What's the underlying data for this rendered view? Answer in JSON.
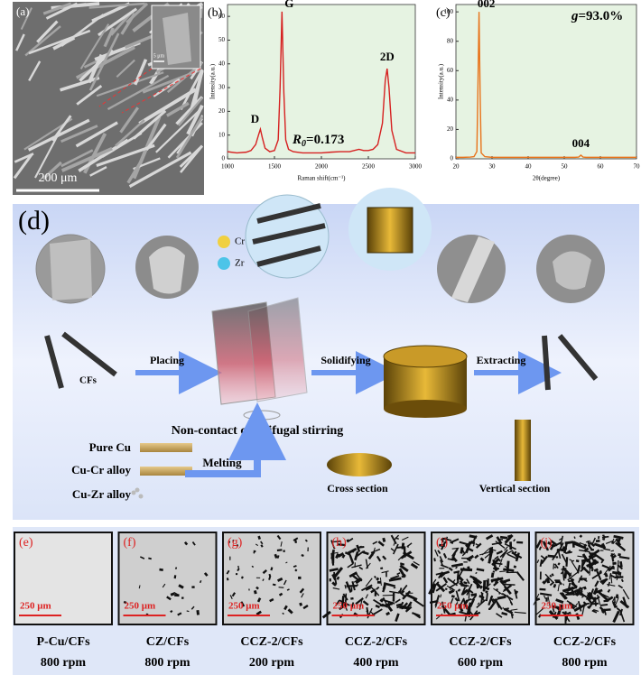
{
  "figure": {
    "panel_a": {
      "label": "(a)",
      "scale_bar": "200 μm",
      "inset_scale_bar": "5 μm"
    },
    "panel_d": {
      "label": "(d)",
      "elements": [
        "Cr",
        "Zr"
      ],
      "fiber_label": "CFs",
      "steps": [
        "Placing",
        "Solidifying",
        "Extracting"
      ],
      "process": "Non-contact centrifugal stirring",
      "materials": [
        "Pure Cu",
        "Cu-Cr alloy",
        "Cu-Zr alloy"
      ],
      "melting": "Melting",
      "sections": [
        "Cross section",
        "Vertical section"
      ]
    },
    "bottom_panels": [
      {
        "label": "(e)",
        "scale_bar": "250 μm",
        "caption": [
          "P-Cu/CFs",
          "800 rpm"
        ]
      },
      {
        "label": "(f)",
        "scale_bar": "250 μm",
        "caption": [
          "CZ/CFs",
          "800 rpm"
        ]
      },
      {
        "label": "(g)",
        "scale_bar": "250 μm",
        "caption": [
          "CCZ-2/CFs",
          "200 rpm"
        ]
      },
      {
        "label": "(h)",
        "scale_bar": "250 μm",
        "caption": [
          "CCZ-2/CFs",
          "400 rpm"
        ]
      },
      {
        "label": "(i)",
        "scale_bar": "250 μm",
        "caption": [
          "CCZ-2/CFs",
          "600 rpm"
        ]
      },
      {
        "label": "(j)",
        "scale_bar": "250 μm",
        "caption": [
          "CCZ-2/CFs",
          "800 rpm"
        ]
      }
    ]
  },
  "chart_data": [
    {
      "type": "line",
      "panel_label": "(b)",
      "x_label": "Raman shift(cm⁻¹)",
      "y_label": "Intensity(a.u.)",
      "x": [
        1000,
        1100,
        1200,
        1250,
        1300,
        1330,
        1350,
        1370,
        1400,
        1450,
        1500,
        1540,
        1560,
        1580,
        1600,
        1620,
        1650,
        1700,
        1800,
        1900,
        2000,
        2100,
        2200,
        2300,
        2400,
        2450,
        2500,
        2550,
        2600,
        2650,
        2680,
        2700,
        2720,
        2750,
        2800,
        2900,
        3000
      ],
      "series": [
        {
          "color": "#d62020",
          "values": [
            3,
            2.5,
            2.8,
            3.5,
            6,
            10,
            12.5,
            9,
            4.5,
            3,
            3.5,
            8,
            30,
            62,
            28,
            8,
            4,
            3,
            2.5,
            2.5,
            2.5,
            2.8,
            3,
            3,
            4,
            3.5,
            3.5,
            4,
            6,
            15,
            33,
            38,
            30,
            12,
            4,
            2.5,
            2.5
          ]
        }
      ],
      "xlim": [
        1000,
        3000
      ],
      "xticks": [
        1000,
        1500,
        2000,
        2500,
        3000
      ],
      "ylim": [
        0,
        65
      ],
      "yticks": [
        0,
        10,
        20,
        30,
        40,
        50,
        60
      ],
      "background": "#e6f3e2",
      "peak_labels": [
        "D",
        "G",
        "2D"
      ],
      "ratio": {
        "symbol": "R",
        "subscript": "0",
        "text": "=0.173"
      }
    },
    {
      "type": "line",
      "panel_label": "(c)",
      "x_label": "2θ(degree)",
      "y_label": "Intensity(a.u.)",
      "x": [
        20,
        22,
        24,
        25,
        25.8,
        26.1,
        26.4,
        26.7,
        27,
        28,
        30,
        35,
        40,
        45,
        50,
        53,
        54,
        54.6,
        55.2,
        56,
        60,
        65,
        70
      ],
      "series": [
        {
          "color": "#e8741c",
          "values": [
            1,
            1,
            1.2,
            1.5,
            5,
            50,
            100,
            45,
            4,
            1.5,
            1,
            1,
            1,
            1,
            1,
            1,
            1.2,
            2.5,
            1.2,
            1,
            1,
            1,
            1
          ]
        }
      ],
      "xlim": [
        20,
        70
      ],
      "xticks": [
        20,
        30,
        40,
        50,
        60,
        70
      ],
      "ylim": [
        0,
        105
      ],
      "yticks": [
        0,
        20,
        40,
        60,
        80,
        100
      ],
      "background": "#e6f3e2",
      "peak_labels": [
        "002",
        "004"
      ],
      "ratio": {
        "symbol": "g",
        "text": "=93.0%"
      }
    }
  ]
}
